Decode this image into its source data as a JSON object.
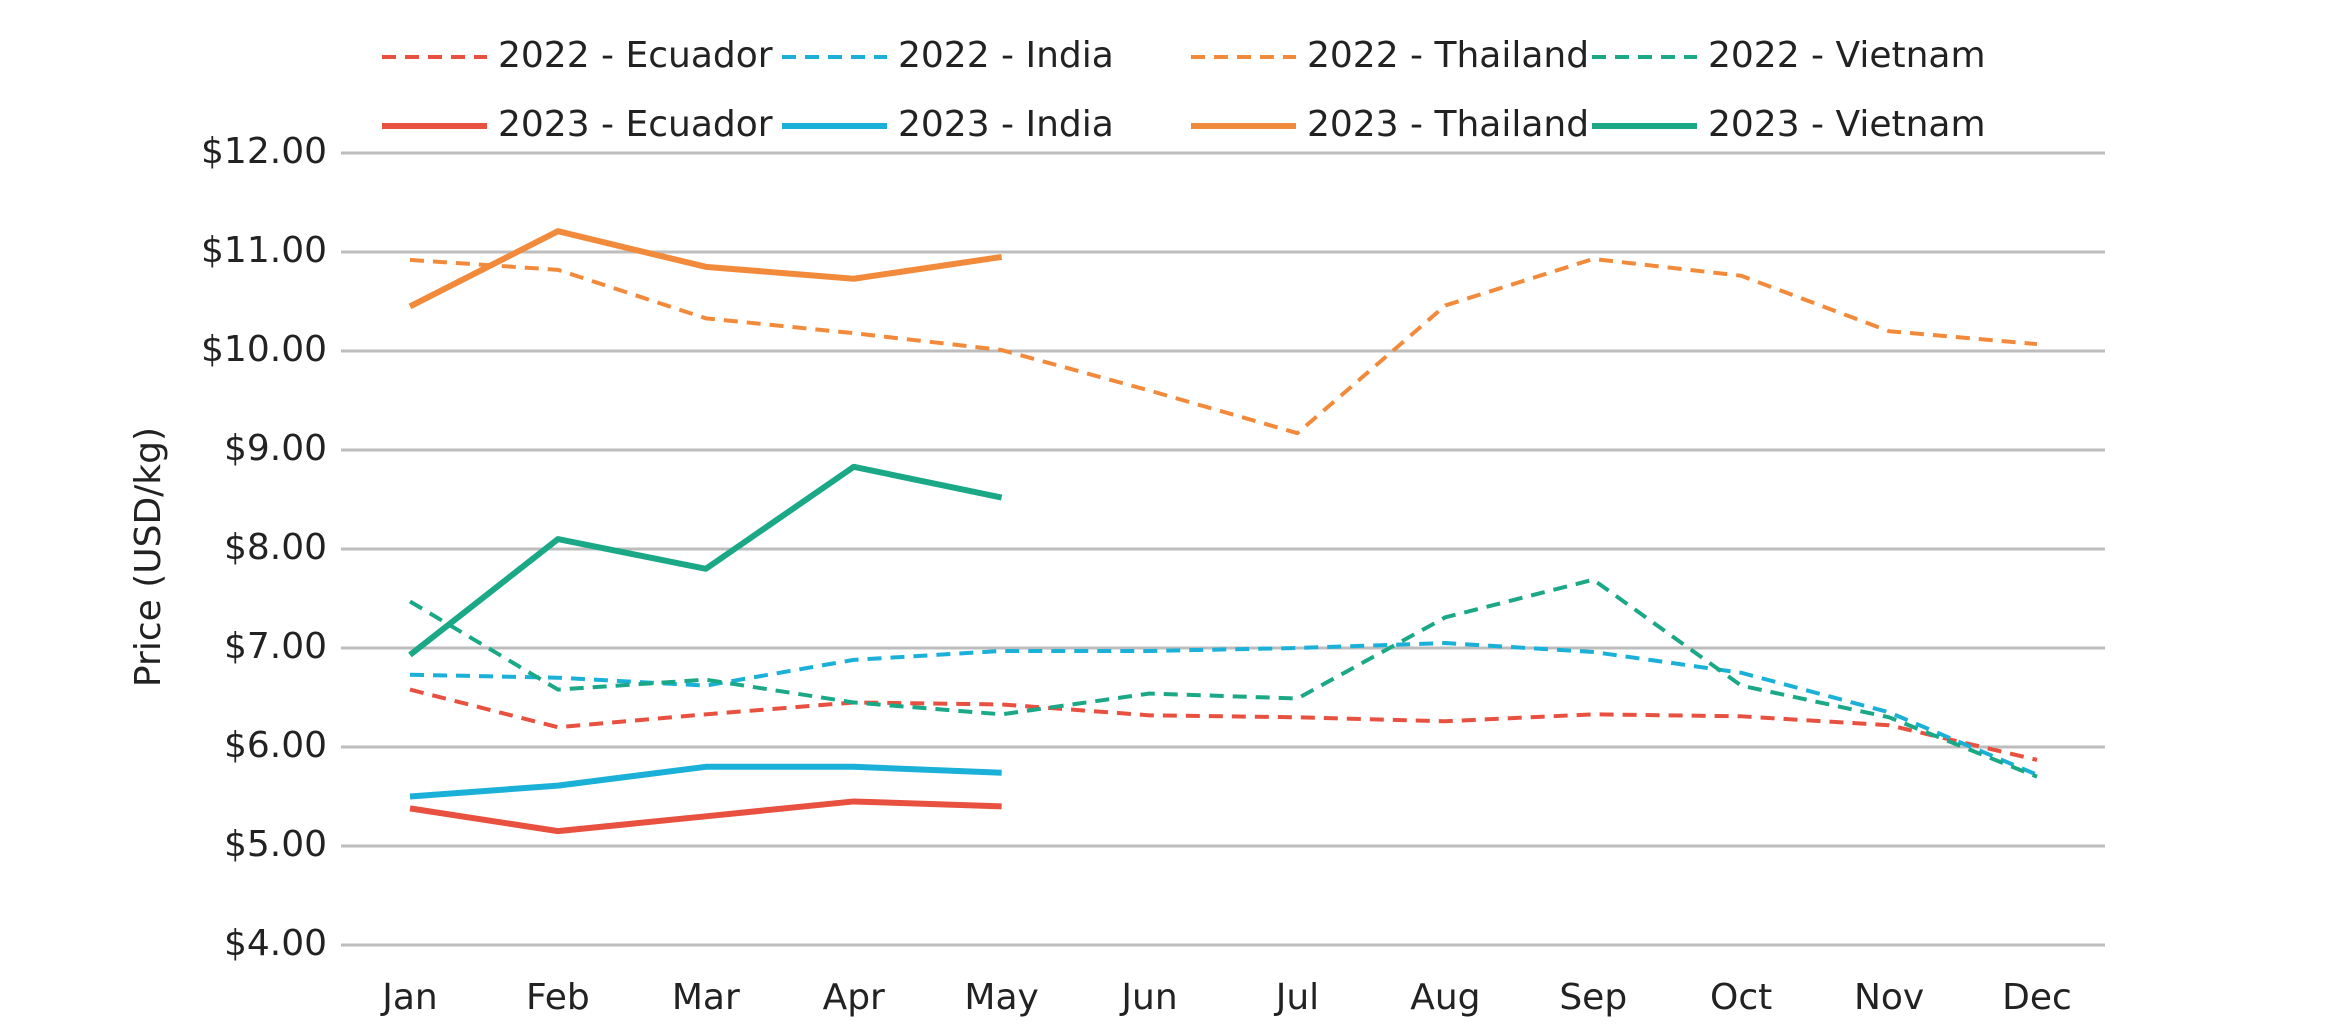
{
  "chart_data": {
    "type": "line",
    "y_label": "Price (USD/kg)",
    "categories": [
      "Jan",
      "Feb",
      "Mar",
      "Apr",
      "May",
      "Jun",
      "Jul",
      "Aug",
      "Sep",
      "Oct",
      "Nov",
      "Dec"
    ],
    "series": [
      {
        "name": "2022 - Ecuador",
        "color": "#e8503f",
        "dashed": true,
        "values": [
          6.58,
          6.2,
          6.33,
          6.45,
          6.43,
          6.32,
          6.3,
          6.26,
          6.33,
          6.31,
          6.22,
          5.87
        ]
      },
      {
        "name": "2022 - India",
        "color": "#1ab0d8",
        "dashed": true,
        "values": [
          6.73,
          6.7,
          6.62,
          6.88,
          6.97,
          6.97,
          7.0,
          7.05,
          6.96,
          6.75,
          6.35,
          5.72
        ]
      },
      {
        "name": "2022 - Thailand",
        "color": "#f28a3c",
        "dashed": true,
        "values": [
          10.92,
          10.82,
          10.33,
          10.18,
          10.01,
          9.6,
          9.17,
          10.46,
          10.93,
          10.76,
          10.2,
          10.07
        ]
      },
      {
        "name": "2022 - Vietnam",
        "color": "#1aa886",
        "dashed": true,
        "values": [
          7.47,
          6.58,
          6.68,
          6.45,
          6.33,
          6.54,
          6.49,
          7.31,
          7.69,
          6.62,
          6.3,
          5.7
        ]
      },
      {
        "name": "2023 - Ecuador",
        "color": "#e8503f",
        "dashed": false,
        "values": [
          5.38,
          5.15,
          5.3,
          5.45,
          5.4,
          null,
          null,
          null,
          null,
          null,
          null,
          null
        ]
      },
      {
        "name": "2023 - India",
        "color": "#1ab0d8",
        "dashed": false,
        "values": [
          5.5,
          5.61,
          5.8,
          5.8,
          5.74,
          null,
          null,
          null,
          null,
          null,
          null,
          null
        ]
      },
      {
        "name": "2023 - Thailand",
        "color": "#f28a3c",
        "dashed": false,
        "values": [
          10.45,
          11.21,
          10.85,
          10.73,
          10.95,
          null,
          null,
          null,
          null,
          null,
          null,
          null
        ]
      },
      {
        "name": "2023 - Vietnam",
        "color": "#1aa886",
        "dashed": false,
        "values": [
          6.93,
          8.1,
          7.8,
          8.83,
          8.52,
          null,
          null,
          null,
          null,
          null,
          null,
          null
        ]
      }
    ],
    "ylim": [
      4,
      12
    ],
    "yticks": [
      {
        "value": 4,
        "label": "$4.00"
      },
      {
        "value": 5,
        "label": "$5.00"
      },
      {
        "value": 6,
        "label": "$6.00"
      },
      {
        "value": 7,
        "label": "$7.00"
      },
      {
        "value": 8,
        "label": "$8.00"
      },
      {
        "value": 9,
        "label": "$9.00"
      },
      {
        "value": 10,
        "label": "$10.00"
      },
      {
        "value": 11,
        "label": "$11.00"
      },
      {
        "value": 12,
        "label": "$12.00"
      }
    ],
    "grid": true,
    "legend": "top"
  }
}
